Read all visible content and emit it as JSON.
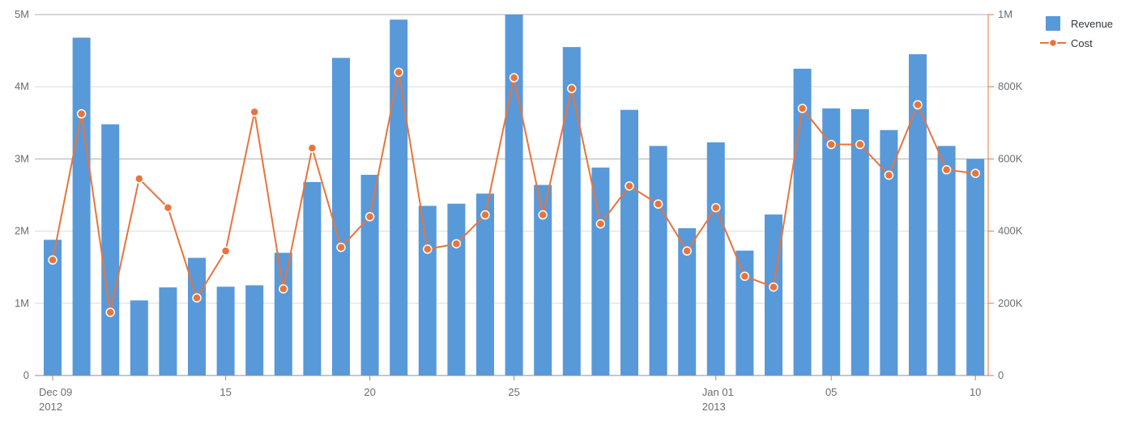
{
  "chart_data": {
    "type": "bar+line",
    "title": "",
    "x_dates": [
      "2012-12-09",
      "2012-12-10",
      "2012-12-11",
      "2012-12-12",
      "2012-12-13",
      "2012-12-14",
      "2012-12-15",
      "2012-12-16",
      "2012-12-17",
      "2012-12-18",
      "2012-12-19",
      "2012-12-20",
      "2012-12-21",
      "2012-12-22",
      "2012-12-23",
      "2012-12-24",
      "2012-12-25",
      "2012-12-26",
      "2012-12-27",
      "2012-12-28",
      "2012-12-29",
      "2012-12-30",
      "2012-12-31",
      "2013-01-01",
      "2013-01-02",
      "2013-01-03",
      "2013-01-04",
      "2013-01-05",
      "2013-01-06",
      "2013-01-07",
      "2013-01-08",
      "2013-01-09",
      "2013-01-10"
    ],
    "x_tick_labels": [
      {
        "date": "2012-12-09",
        "label": "Dec 09",
        "sublabel": "2012"
      },
      {
        "date": "2012-12-15",
        "label": "15",
        "sublabel": ""
      },
      {
        "date": "2012-12-20",
        "label": "20",
        "sublabel": ""
      },
      {
        "date": "2012-12-25",
        "label": "25",
        "sublabel": ""
      },
      {
        "date": "2013-01-01",
        "label": "Jan 01",
        "sublabel": "2013"
      },
      {
        "date": "2013-01-05",
        "label": "05",
        "sublabel": ""
      },
      {
        "date": "2013-01-10",
        "label": "10",
        "sublabel": ""
      }
    ],
    "series": [
      {
        "name": "Revenue",
        "type": "bar",
        "axis": "left",
        "color": "#5899da",
        "values": [
          1880000,
          4680000,
          3480000,
          1040000,
          1220000,
          1630000,
          1230000,
          1250000,
          1700000,
          2680000,
          4400000,
          2780000,
          4930000,
          2350000,
          2380000,
          2520000,
          5000000,
          2640000,
          4550000,
          2880000,
          3680000,
          3180000,
          2040000,
          3230000,
          1730000,
          2230000,
          4250000,
          3700000,
          3690000,
          3400000,
          4450000,
          3180000,
          3000000
        ]
      },
      {
        "name": "Cost",
        "type": "line",
        "axis": "right",
        "color": "#e8743b",
        "values": [
          320000,
          725000,
          175000,
          545000,
          465000,
          215000,
          345000,
          730000,
          240000,
          630000,
          355000,
          440000,
          840000,
          350000,
          365000,
          445000,
          825000,
          445000,
          795000,
          420000,
          525000,
          475000,
          345000,
          465000,
          275000,
          245000,
          740000,
          640000,
          640000,
          555000,
          750000,
          570000,
          560000
        ]
      }
    ],
    "y_left": {
      "min": 0,
      "max": 5000000,
      "ticks": [
        0,
        1000000,
        2000000,
        3000000,
        4000000,
        5000000
      ],
      "tick_labels": [
        "0",
        "1M",
        "2M",
        "3M",
        "4M",
        "5M"
      ]
    },
    "y_right": {
      "min": 0,
      "max": 1000000,
      "ticks": [
        0,
        200000,
        400000,
        600000,
        800000,
        1000000
      ],
      "tick_labels": [
        "0",
        "200K",
        "400K",
        "600K",
        "800K",
        "1M"
      ]
    },
    "grid": true,
    "legend_position": "top-right"
  },
  "legend": {
    "revenue_label": "Revenue",
    "cost_label": "Cost"
  },
  "colors": {
    "revenue": "#5899da",
    "cost": "#e8743b",
    "grid": "#d9dcdf",
    "axis": "#89919a",
    "right_axis": "#e8743b"
  }
}
